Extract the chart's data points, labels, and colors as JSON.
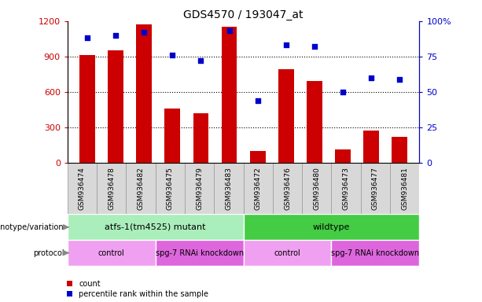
{
  "title": "GDS4570 / 193047_at",
  "samples": [
    "GSM936474",
    "GSM936478",
    "GSM936482",
    "GSM936475",
    "GSM936479",
    "GSM936483",
    "GSM936472",
    "GSM936476",
    "GSM936480",
    "GSM936473",
    "GSM936477",
    "GSM936481"
  ],
  "counts": [
    910,
    950,
    1170,
    460,
    420,
    1150,
    100,
    790,
    690,
    115,
    275,
    220
  ],
  "percentiles": [
    88,
    90,
    92,
    76,
    72,
    93,
    44,
    83,
    82,
    50,
    60,
    59
  ],
  "bar_color": "#cc0000",
  "dot_color": "#0000cc",
  "ylim_left": [
    0,
    1200
  ],
  "ylim_right": [
    0,
    100
  ],
  "yticks_left": [
    0,
    300,
    600,
    900,
    1200
  ],
  "ytick_labels_left": [
    "0",
    "300",
    "600",
    "900",
    "1200"
  ],
  "yticks_right": [
    0,
    25,
    50,
    75,
    100
  ],
  "ytick_labels_right": [
    "0",
    "25",
    "50",
    "75",
    "100%"
  ],
  "genotype_groups": [
    {
      "label": "atfs-1(tm4525) mutant",
      "start": 0,
      "end": 6,
      "color": "#aaeebb"
    },
    {
      "label": "wildtype",
      "start": 6,
      "end": 12,
      "color": "#44cc44"
    }
  ],
  "protocol_groups": [
    {
      "label": "control",
      "start": 0,
      "end": 3,
      "color": "#f0a0f0"
    },
    {
      "label": "spg-7 RNAi knockdown",
      "start": 3,
      "end": 6,
      "color": "#dd66dd"
    },
    {
      "label": "control",
      "start": 6,
      "end": 9,
      "color": "#f0a0f0"
    },
    {
      "label": "spg-7 RNAi knockdown",
      "start": 9,
      "end": 12,
      "color": "#dd66dd"
    }
  ],
  "legend_count_label": "count",
  "legend_percentile_label": "percentile rank within the sample",
  "genotype_label": "genotype/variation",
  "protocol_label": "protocol",
  "bar_width": 0.55,
  "sample_bg_color": "#d8d8d8"
}
